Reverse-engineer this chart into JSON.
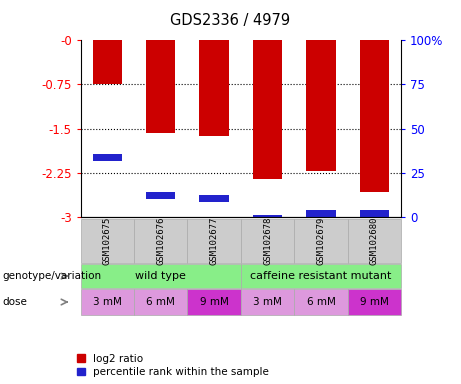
{
  "title": "GDS2336 / 4979",
  "samples": [
    "GSM102675",
    "GSM102676",
    "GSM102677",
    "GSM102678",
    "GSM102679",
    "GSM102680"
  ],
  "log2_ratio": [
    -0.75,
    -1.57,
    -1.62,
    -2.36,
    -2.22,
    -2.57
  ],
  "blue_segment_top": [
    -1.93,
    -2.58,
    -2.62,
    -2.97,
    -2.88,
    -2.88
  ],
  "blue_segment_bottom": [
    -2.05,
    -2.7,
    -2.74,
    -3.0,
    -3.0,
    -3.0
  ],
  "ylim_min": -3.0,
  "ylim_max": 0.0,
  "yticks_left": [
    0,
    -0.75,
    -1.5,
    -2.25,
    -3.0
  ],
  "ytick_labels_left": [
    "-0",
    "-0.75",
    "-1.5",
    "-2.25",
    "-3"
  ],
  "yticks_right": [
    0,
    -0.75,
    -1.5,
    -2.25,
    -3.0
  ],
  "ytick_labels_right": [
    "100%",
    "75",
    "50",
    "25",
    "0"
  ],
  "bar_color": "#cc0000",
  "blue_color": "#2222cc",
  "bar_width": 0.55,
  "dose_labels": [
    "3 mM",
    "6 mM",
    "9 mM",
    "3 mM",
    "6 mM",
    "9 mM"
  ],
  "dose_colors": [
    "#dd99dd",
    "#dd99dd",
    "#cc33cc",
    "#dd99dd",
    "#dd99dd",
    "#cc33cc"
  ],
  "sample_box_color": "#cccccc",
  "genotype_color": "#88ee88",
  "legend_items": [
    {
      "label": "log2 ratio",
      "color": "#cc0000"
    },
    {
      "label": "percentile rank within the sample",
      "color": "#2222cc"
    }
  ]
}
